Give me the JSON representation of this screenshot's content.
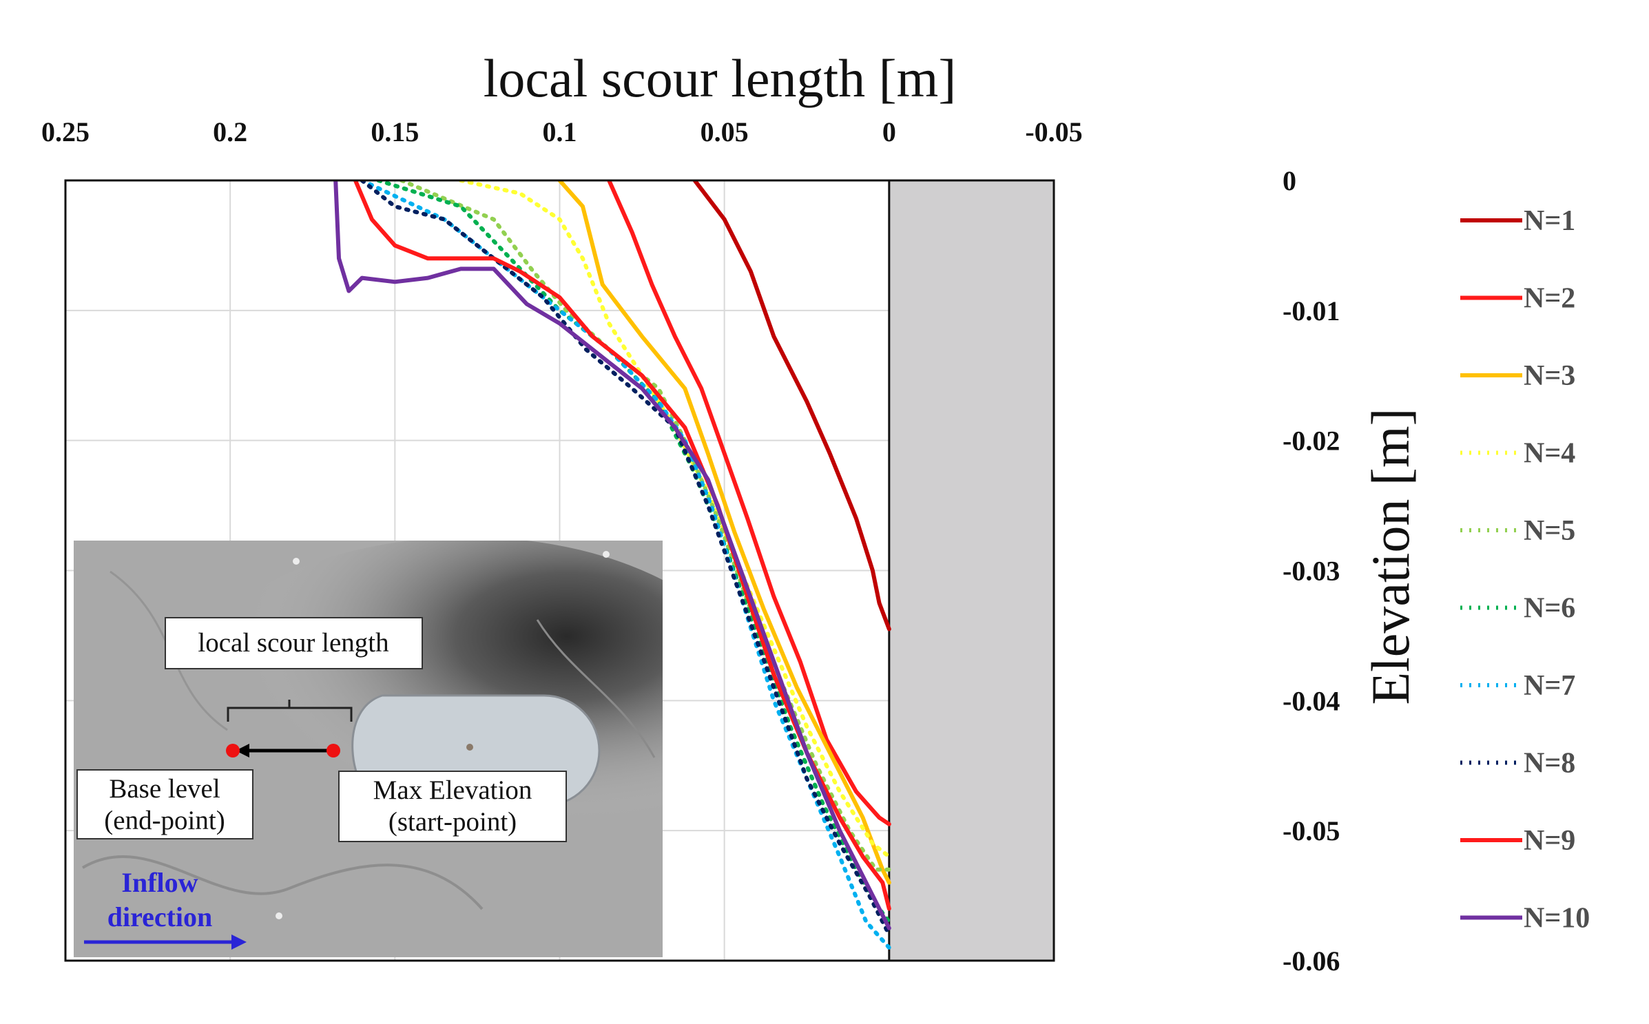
{
  "chart_data": {
    "type": "line",
    "xlabel": "local scour length [m]",
    "ylabel": "Elevation [m]",
    "xlim": [
      0.25,
      -0.05
    ],
    "ylim": [
      -0.06,
      0
    ],
    "x_reversed": true,
    "x_axis_position": "top",
    "y_axis_position": "right",
    "grid": true,
    "legend_position": "right",
    "x_ticks": [
      "0.25",
      "0.2",
      "0.15",
      "0.1",
      "0.05",
      "0",
      "-0.05"
    ],
    "y_ticks": [
      "0",
      "-0.01",
      "-0.02",
      "-0.03",
      "-0.04",
      "-0.05",
      "-0.06"
    ],
    "pier_region": {
      "x_from": 0,
      "x_to": -0.05,
      "color": "#d0cfd0"
    },
    "series": [
      {
        "name": "N=1",
        "color": "#c00000",
        "dash": "solid",
        "points": [
          [
            0.059,
            0
          ],
          [
            0.05,
            -0.003
          ],
          [
            0.042,
            -0.007
          ],
          [
            0.035,
            -0.012
          ],
          [
            0.025,
            -0.017
          ],
          [
            0.018,
            -0.021
          ],
          [
            0.01,
            -0.026
          ],
          [
            0.005,
            -0.03
          ],
          [
            0.003,
            -0.0325
          ],
          [
            0.0,
            -0.0345
          ]
        ]
      },
      {
        "name": "N=2",
        "color": "#ff1a1a",
        "dash": "solid",
        "points": [
          [
            0.085,
            0
          ],
          [
            0.078,
            -0.004
          ],
          [
            0.072,
            -0.008
          ],
          [
            0.065,
            -0.012
          ],
          [
            0.057,
            -0.016
          ],
          [
            0.05,
            -0.021
          ],
          [
            0.043,
            -0.026
          ],
          [
            0.035,
            -0.032
          ],
          [
            0.027,
            -0.037
          ],
          [
            0.019,
            -0.043
          ],
          [
            0.01,
            -0.047
          ],
          [
            0.003,
            -0.049
          ],
          [
            0.0,
            -0.0495
          ]
        ]
      },
      {
        "name": "N=3",
        "color": "#ffc000",
        "dash": "solid",
        "points": [
          [
            0.1,
            0
          ],
          [
            0.093,
            -0.002
          ],
          [
            0.087,
            -0.008
          ],
          [
            0.075,
            -0.012
          ],
          [
            0.062,
            -0.016
          ],
          [
            0.055,
            -0.021
          ],
          [
            0.047,
            -0.027
          ],
          [
            0.038,
            -0.033
          ],
          [
            0.028,
            -0.039
          ],
          [
            0.018,
            -0.044
          ],
          [
            0.008,
            -0.049
          ],
          [
            0.002,
            -0.053
          ],
          [
            0.0,
            -0.054
          ]
        ]
      },
      {
        "name": "N=4",
        "color": "#ffff33",
        "dash": "dot",
        "points": [
          [
            0.13,
            0
          ],
          [
            0.112,
            -0.001
          ],
          [
            0.1,
            -0.003
          ],
          [
            0.093,
            -0.006
          ],
          [
            0.085,
            -0.011
          ],
          [
            0.075,
            -0.015
          ],
          [
            0.065,
            -0.019
          ],
          [
            0.055,
            -0.024
          ],
          [
            0.045,
            -0.03
          ],
          [
            0.035,
            -0.036
          ],
          [
            0.025,
            -0.042
          ],
          [
            0.015,
            -0.047
          ],
          [
            0.005,
            -0.051
          ],
          [
            0.0,
            -0.052
          ]
        ]
      },
      {
        "name": "N=5",
        "color": "#92d050",
        "dash": "dot",
        "points": [
          [
            0.148,
            0
          ],
          [
            0.12,
            -0.003
          ],
          [
            0.108,
            -0.007
          ],
          [
            0.098,
            -0.01
          ],
          [
            0.085,
            -0.013
          ],
          [
            0.07,
            -0.016
          ],
          [
            0.062,
            -0.02
          ],
          [
            0.052,
            -0.026
          ],
          [
            0.042,
            -0.033
          ],
          [
            0.032,
            -0.039
          ],
          [
            0.022,
            -0.045
          ],
          [
            0.012,
            -0.05
          ],
          [
            0.004,
            -0.053
          ],
          [
            0.0,
            -0.053
          ]
        ]
      },
      {
        "name": "N=6",
        "color": "#00b050",
        "dash": "dot",
        "points": [
          [
            0.155,
            0
          ],
          [
            0.13,
            -0.002
          ],
          [
            0.115,
            -0.006
          ],
          [
            0.1,
            -0.01
          ],
          [
            0.085,
            -0.013
          ],
          [
            0.07,
            -0.017
          ],
          [
            0.06,
            -0.022
          ],
          [
            0.05,
            -0.028
          ],
          [
            0.04,
            -0.035
          ],
          [
            0.03,
            -0.042
          ],
          [
            0.02,
            -0.048
          ],
          [
            0.01,
            -0.053
          ],
          [
            0.003,
            -0.056
          ],
          [
            0.0,
            -0.057
          ]
        ]
      },
      {
        "name": "N=7",
        "color": "#00b0f0",
        "dash": "dot",
        "points": [
          [
            0.16,
            0
          ],
          [
            0.135,
            -0.003
          ],
          [
            0.115,
            -0.007
          ],
          [
            0.1,
            -0.01
          ],
          [
            0.085,
            -0.013
          ],
          [
            0.07,
            -0.017
          ],
          [
            0.062,
            -0.02
          ],
          [
            0.054,
            -0.025
          ],
          [
            0.045,
            -0.032
          ],
          [
            0.035,
            -0.04
          ],
          [
            0.025,
            -0.046
          ],
          [
            0.015,
            -0.052
          ],
          [
            0.007,
            -0.057
          ],
          [
            0.0,
            -0.059
          ]
        ]
      },
      {
        "name": "N=8",
        "color": "#002060",
        "dash": "dot",
        "points": [
          [
            0.16,
            0
          ],
          [
            0.15,
            -0.002
          ],
          [
            0.135,
            -0.003
          ],
          [
            0.12,
            -0.006
          ],
          [
            0.105,
            -0.009
          ],
          [
            0.092,
            -0.013
          ],
          [
            0.078,
            -0.016
          ],
          [
            0.065,
            -0.019
          ],
          [
            0.055,
            -0.025
          ],
          [
            0.045,
            -0.032
          ],
          [
            0.035,
            -0.039
          ],
          [
            0.025,
            -0.046
          ],
          [
            0.015,
            -0.051
          ],
          [
            0.006,
            -0.055
          ],
          [
            0.0,
            -0.058
          ]
        ]
      },
      {
        "name": "N=9",
        "color": "#ff1a1a",
        "dash": "solid",
        "points": [
          [
            0.162,
            0
          ],
          [
            0.157,
            -0.003
          ],
          [
            0.15,
            -0.005
          ],
          [
            0.14,
            -0.006
          ],
          [
            0.125,
            -0.006
          ],
          [
            0.12,
            -0.006
          ],
          [
            0.112,
            -0.007
          ],
          [
            0.1,
            -0.009
          ],
          [
            0.09,
            -0.012
          ],
          [
            0.075,
            -0.015
          ],
          [
            0.062,
            -0.019
          ],
          [
            0.052,
            -0.025
          ],
          [
            0.043,
            -0.032
          ],
          [
            0.035,
            -0.038
          ],
          [
            0.025,
            -0.044
          ],
          [
            0.015,
            -0.049
          ],
          [
            0.008,
            -0.052
          ],
          [
            0.002,
            -0.054
          ],
          [
            0.0,
            -0.056
          ]
        ]
      },
      {
        "name": "N=10",
        "color": "#7030a0",
        "dash": "solid",
        "points": [
          [
            0.168,
            0
          ],
          [
            0.167,
            -0.006
          ],
          [
            0.164,
            -0.0085
          ],
          [
            0.16,
            -0.0075
          ],
          [
            0.15,
            -0.0078
          ],
          [
            0.14,
            -0.0075
          ],
          [
            0.13,
            -0.0068
          ],
          [
            0.12,
            -0.0068
          ],
          [
            0.11,
            -0.0095
          ],
          [
            0.1,
            -0.011
          ],
          [
            0.09,
            -0.013
          ],
          [
            0.075,
            -0.016
          ],
          [
            0.065,
            -0.019
          ],
          [
            0.055,
            -0.023
          ],
          [
            0.045,
            -0.03
          ],
          [
            0.035,
            -0.037
          ],
          [
            0.025,
            -0.044
          ],
          [
            0.015,
            -0.05
          ],
          [
            0.007,
            -0.054
          ],
          [
            0.0,
            -0.0575
          ]
        ]
      }
    ]
  },
  "inset": {
    "scour_label": "local scour length",
    "base_label_line1": "Base level",
    "base_label_line2": "(end-point)",
    "max_label_line1": "Max Elevation",
    "max_label_line2": "(start-point)",
    "inflow_line1": "Inflow",
    "inflow_line2": "direction"
  }
}
